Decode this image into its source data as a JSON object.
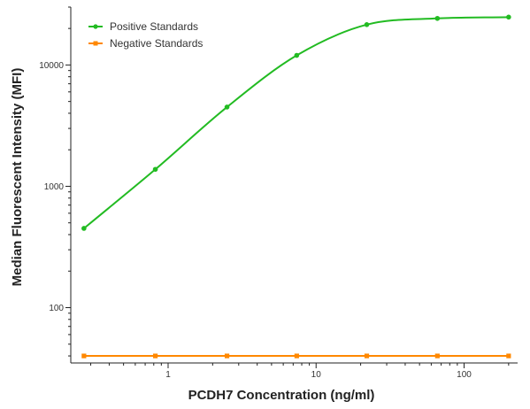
{
  "chart_data": {
    "type": "line",
    "xlabel": "PCDH7 Concentration (ng/ml)",
    "ylabel": "Median Fluorescent Intensity (MFI)",
    "x_scale": "log",
    "y_scale": "log",
    "xlim": [
      0.22,
      230
    ],
    "ylim": [
      35,
      30000
    ],
    "x_ticks": [
      {
        "value": 1,
        "label": "1"
      },
      {
        "value": 10,
        "label": "10"
      },
      {
        "value": 100,
        "label": "100"
      }
    ],
    "y_ticks": [
      {
        "value": 100,
        "label": "100"
      },
      {
        "value": 1000,
        "label": "1000"
      },
      {
        "value": 10000,
        "label": "10000"
      }
    ],
    "legend_position": "top-left",
    "grid": false,
    "series": [
      {
        "name": "Positive Standards",
        "color": "#22bb22",
        "marker": "circle",
        "fit": "smooth-curve",
        "x": [
          0.27,
          0.82,
          2.5,
          7.4,
          22,
          66,
          200
        ],
        "y": [
          450,
          1380,
          4500,
          12000,
          21500,
          24200,
          24800
        ]
      },
      {
        "name": "Negative Standards",
        "color": "#ff8800",
        "marker": "square",
        "fit": "line",
        "x": [
          0.27,
          0.82,
          2.5,
          7.4,
          22,
          66,
          200
        ],
        "y": [
          40,
          40,
          40,
          40,
          40,
          40,
          40
        ]
      }
    ]
  }
}
